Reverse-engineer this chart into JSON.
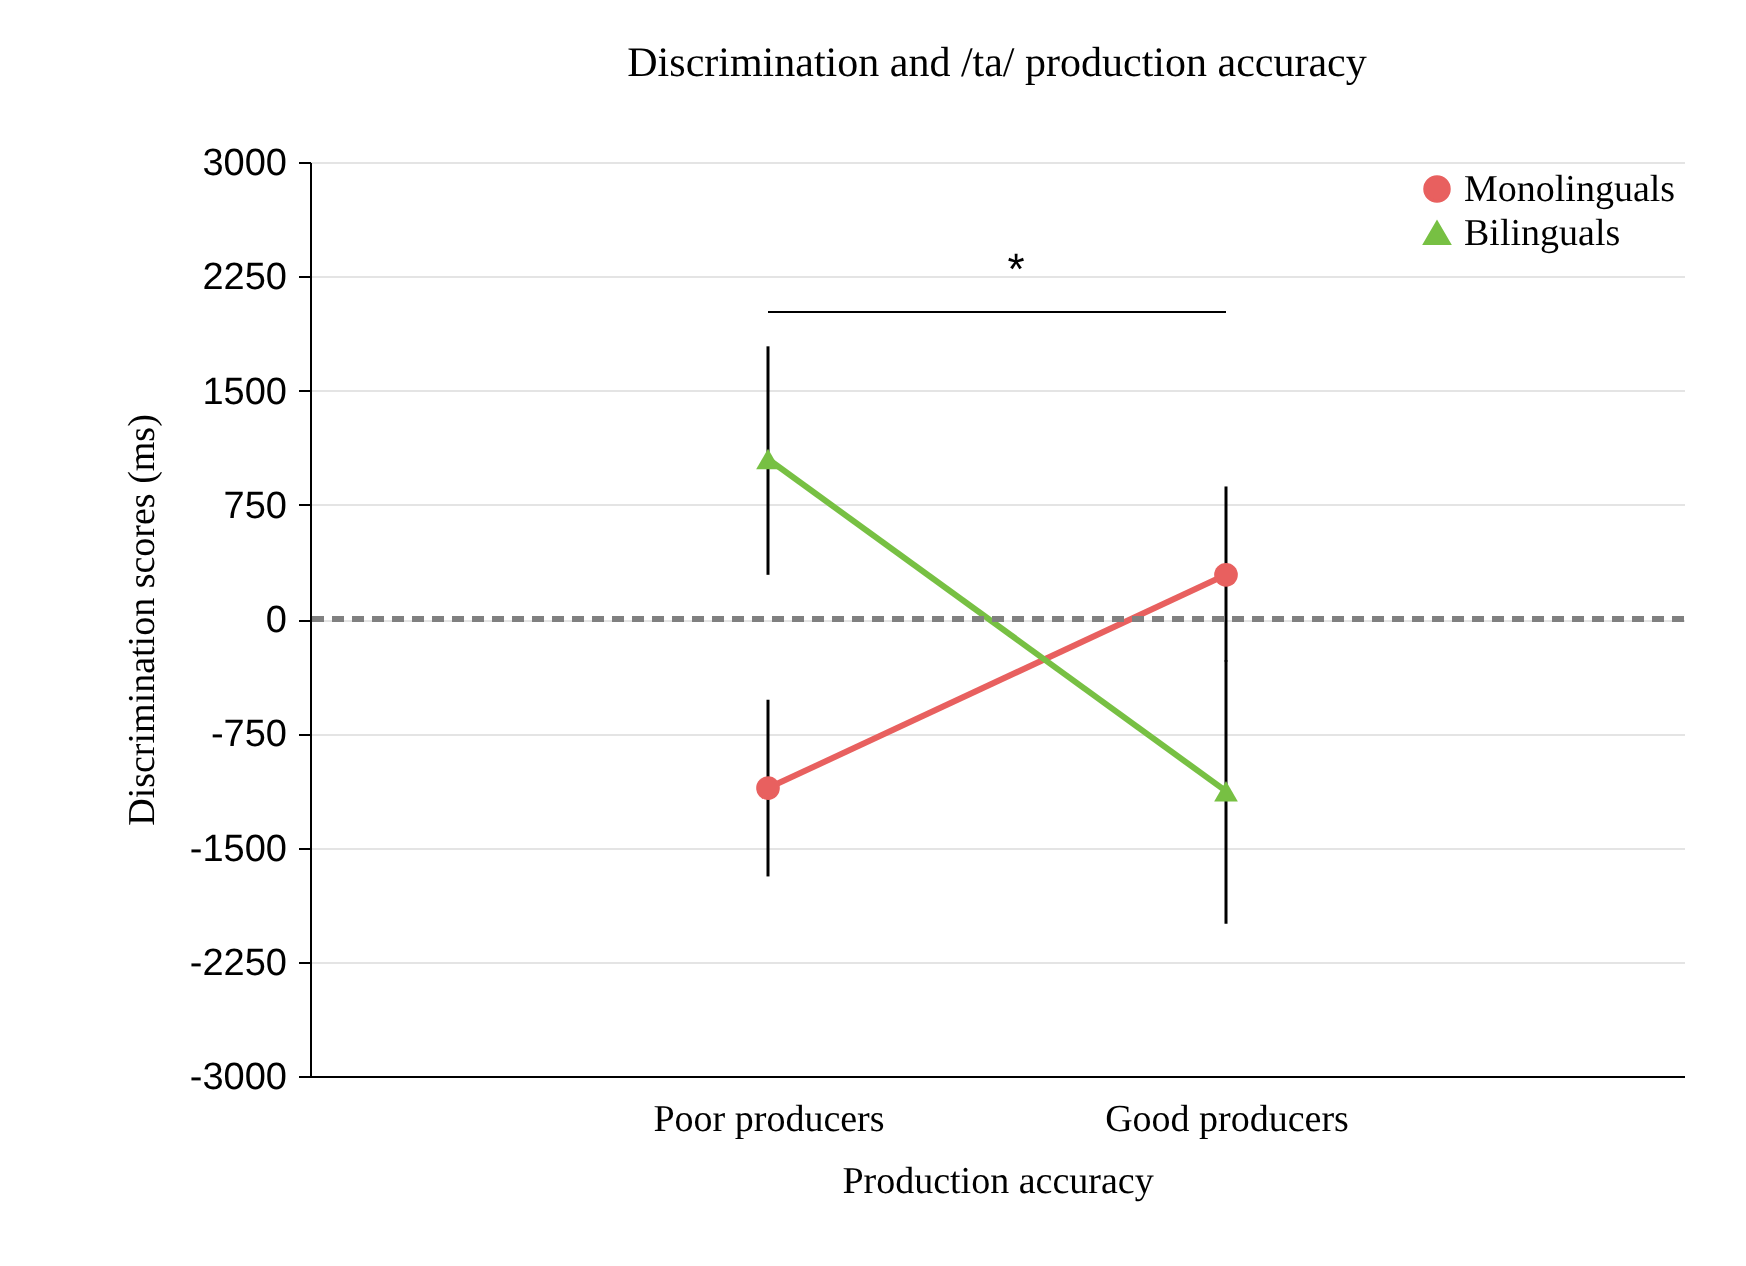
{
  "chart_data": {
    "type": "line",
    "title": "Discrimination and /ta/ production accuracy",
    "xlabel": "Production accuracy",
    "ylabel": "Discrimination scores (ms)",
    "categories": [
      "Poor producers",
      "Good producers"
    ],
    "series": [
      {
        "name": "Monolinguals",
        "color": "#e8605f",
        "marker": "circle",
        "values": [
          -1110,
          290
        ],
        "errors": [
          [
            -1690,
            -530
          ],
          [
            -280,
            870
          ]
        ]
      },
      {
        "name": "Bilinguals",
        "color": "#77c043",
        "marker": "triangle",
        "values": [
          1050,
          -1130
        ],
        "errors": [
          [
            290,
            1790
          ],
          [
            -2000,
            -270
          ]
        ]
      }
    ],
    "ylim": [
      -3000,
      3000
    ],
    "yticks": [
      -3000,
      -2250,
      -1500,
      -750,
      0,
      750,
      1500,
      2250,
      3000
    ],
    "ref_lines": [
      {
        "axis": "y",
        "value": 0,
        "color": "#808080",
        "line_style": "dashed"
      }
    ],
    "annotations": [
      "*"
    ],
    "grid": "y",
    "legend": "top right"
  }
}
